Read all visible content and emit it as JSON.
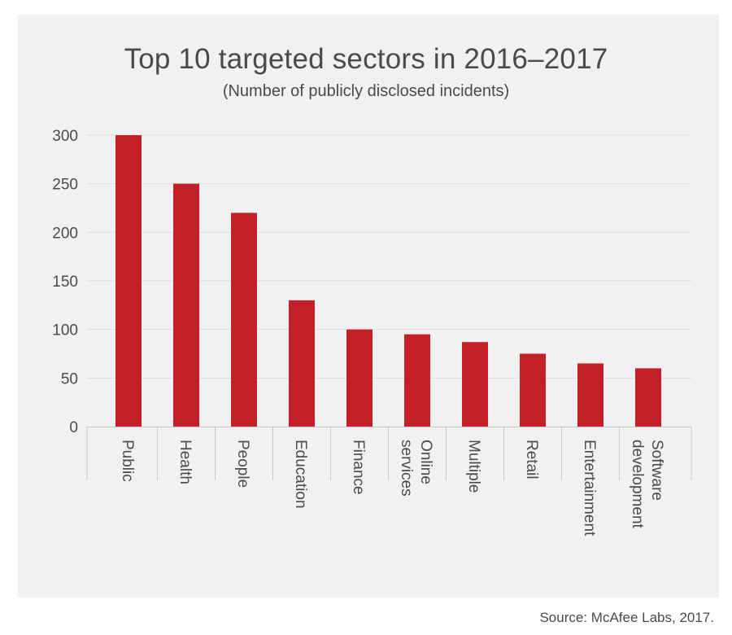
{
  "chart_data": {
    "type": "bar",
    "title": "Top 10 targeted sectors in 2016–2017",
    "subtitle": "(Number of publicly disclosed incidents)",
    "categories": [
      [
        "Public"
      ],
      [
        "Health"
      ],
      [
        "People"
      ],
      [
        "Education"
      ],
      [
        "Finance"
      ],
      [
        "Online",
        "services"
      ],
      [
        "Multiple"
      ],
      [
        "Retail"
      ],
      [
        "Entertainment"
      ],
      [
        "Software",
        "development"
      ]
    ],
    "values": [
      300,
      250,
      220,
      130,
      100,
      95,
      87,
      75,
      65,
      60
    ],
    "ylim": [
      0,
      300
    ],
    "yticks": [
      0,
      50,
      100,
      150,
      200,
      250,
      300
    ],
    "grid": true,
    "legend": "none",
    "bar_color": "#c4202a",
    "grid_color": "#dddddd",
    "axis_color": "#c8c8c8"
  },
  "source": "Source: McAfee Labs, 2017."
}
